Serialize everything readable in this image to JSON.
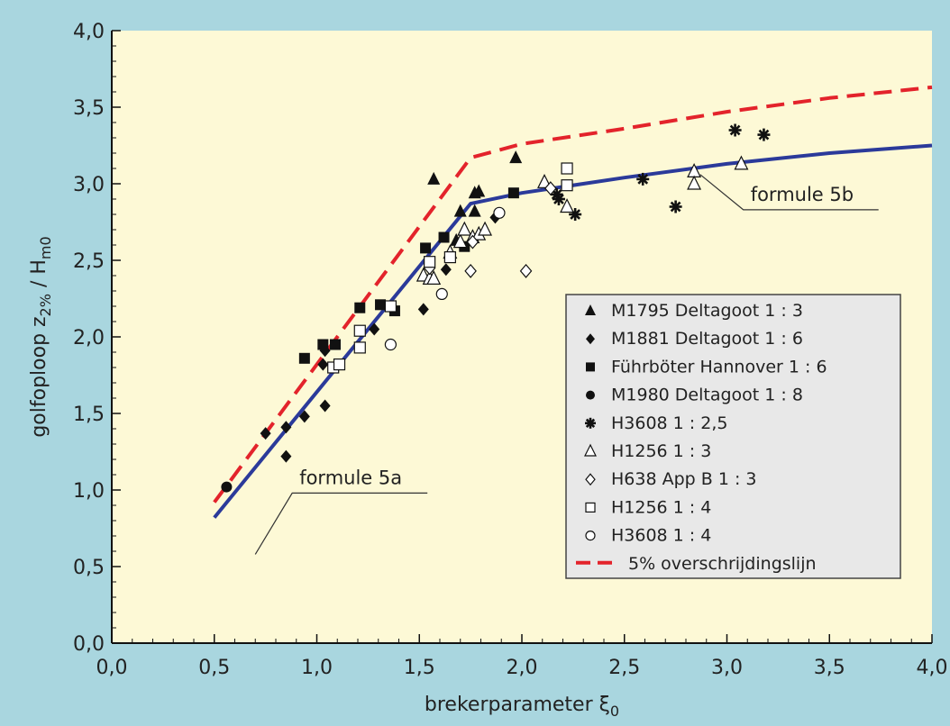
{
  "chart_data": {
    "type": "scatter",
    "xlabel": "brekerparameter ξ",
    "xlabel_sub": "0",
    "ylabel_main": "golfoploop z",
    "ylabel_sub": "2%",
    "ylabel_mid": " / H",
    "ylabel_sub2": "m0",
    "xlim": [
      0,
      4
    ],
    "ylim": [
      0,
      4
    ],
    "x_ticks": [
      0,
      0.5,
      1.0,
      1.5,
      2.0,
      2.5,
      3.0,
      3.5,
      4.0
    ],
    "x_tick_labels": [
      "0,0",
      "0,5",
      "1,0",
      "1,5",
      "2,0",
      "2,5",
      "3,0",
      "3,5",
      "4,0"
    ],
    "y_ticks": [
      0,
      0.5,
      1.0,
      1.5,
      2.0,
      2.5,
      3.0,
      3.5,
      4.0
    ],
    "y_tick_labels": [
      "0,0",
      "0,5",
      "1,0",
      "1,5",
      "2,0",
      "2,5",
      "3,0",
      "3,5",
      "4,0"
    ],
    "colors": {
      "plot_bg": "#fdf9d6",
      "page_bg": "#a9d6df",
      "legend_bg": "#e8e8e8",
      "formula_line": "#2b3a9a",
      "exceedance_line": "#e3232b",
      "marker": "#111111"
    },
    "series": [
      {
        "name": "M1795 Deltagoot 1 : 3",
        "marker": "triangle-filled",
        "points": [
          [
            1.57,
            3.03
          ],
          [
            1.7,
            2.82
          ],
          [
            1.77,
            2.94
          ],
          [
            1.79,
            2.95
          ],
          [
            1.77,
            2.82
          ],
          [
            1.97,
            3.17
          ],
          [
            1.68,
            2.63
          ]
        ]
      },
      {
        "name": "M1881 Deltagoot 1 : 6",
        "marker": "diamond-filled",
        "points": [
          [
            0.75,
            1.37
          ],
          [
            0.85,
            1.41
          ],
          [
            0.85,
            1.22
          ],
          [
            0.94,
            1.48
          ],
          [
            1.03,
            1.82
          ],
          [
            1.04,
            1.91
          ],
          [
            1.04,
            1.55
          ],
          [
            1.28,
            2.05
          ],
          [
            1.52,
            2.18
          ],
          [
            1.63,
            2.44
          ],
          [
            1.87,
            2.78
          ]
        ]
      },
      {
        "name": "Führböter Hannover 1 : 6",
        "marker": "square-filled",
        "points": [
          [
            0.94,
            1.86
          ],
          [
            1.03,
            1.95
          ],
          [
            1.09,
            1.95
          ],
          [
            1.21,
            2.19
          ],
          [
            1.31,
            2.21
          ],
          [
            1.38,
            2.17
          ],
          [
            1.53,
            2.58
          ],
          [
            1.62,
            2.65
          ],
          [
            1.72,
            2.59
          ],
          [
            1.96,
            2.94
          ]
        ]
      },
      {
        "name": "M1980 Deltagoot 1 : 8",
        "marker": "circle-filled",
        "points": [
          [
            0.56,
            1.02
          ]
        ]
      },
      {
        "name": "H3608 1 : 2,5",
        "marker": "asterisk",
        "points": [
          [
            2.17,
            2.93
          ],
          [
            2.18,
            2.9
          ],
          [
            2.26,
            2.8
          ],
          [
            2.59,
            3.03
          ],
          [
            2.75,
            2.85
          ],
          [
            3.04,
            3.35
          ],
          [
            3.18,
            3.32
          ]
        ]
      },
      {
        "name": "H1256 1 : 3",
        "marker": "triangle-open",
        "points": [
          [
            1.52,
            2.4
          ],
          [
            1.55,
            2.38
          ],
          [
            1.57,
            2.38
          ],
          [
            1.65,
            2.55
          ],
          [
            1.7,
            2.62
          ],
          [
            1.72,
            2.7
          ],
          [
            1.76,
            2.65
          ],
          [
            1.79,
            2.67
          ],
          [
            1.82,
            2.7
          ],
          [
            2.11,
            3.01
          ],
          [
            2.22,
            2.85
          ],
          [
            2.84,
            3.08
          ],
          [
            2.84,
            3.0
          ],
          [
            3.07,
            3.13
          ]
        ]
      },
      {
        "name": "H638 App B 1 : 3",
        "marker": "diamond-open",
        "points": [
          [
            1.55,
            2.45
          ],
          [
            1.75,
            2.43
          ],
          [
            1.76,
            2.62
          ],
          [
            2.02,
            2.43
          ],
          [
            2.14,
            2.97
          ]
        ]
      },
      {
        "name": "H1256 1 : 4",
        "marker": "square-open",
        "points": [
          [
            1.08,
            1.8
          ],
          [
            1.11,
            1.82
          ],
          [
            1.21,
            2.04
          ],
          [
            1.21,
            1.93
          ],
          [
            1.36,
            2.2
          ],
          [
            1.55,
            2.49
          ],
          [
            1.65,
            2.52
          ],
          [
            2.22,
            3.1
          ],
          [
            2.22,
            2.99
          ]
        ]
      },
      {
        "name": "H3608 1 : 4",
        "marker": "circle-open",
        "points": [
          [
            1.36,
            1.95
          ],
          [
            1.61,
            2.28
          ],
          [
            1.89,
            2.81
          ]
        ]
      }
    ],
    "curves": [
      {
        "name": "formule 5b",
        "style": "solid",
        "points": [
          [
            0.5,
            0.82
          ],
          [
            1.75,
            2.87
          ],
          [
            2.0,
            2.94
          ],
          [
            2.5,
            3.04
          ],
          [
            3.0,
            3.13
          ],
          [
            3.5,
            3.2
          ],
          [
            4.0,
            3.25
          ]
        ]
      },
      {
        "name": "5% overschrijdingslijn",
        "style": "dashed",
        "points": [
          [
            0.5,
            0.92
          ],
          [
            1.75,
            3.17
          ],
          [
            2.0,
            3.26
          ],
          [
            2.5,
            3.36
          ],
          [
            3.0,
            3.47
          ],
          [
            3.5,
            3.56
          ],
          [
            4.0,
            3.63
          ]
        ]
      }
    ],
    "annotations": [
      {
        "text": "formule 5a",
        "at": [
          0.7,
          0.58
        ],
        "label": [
          0.88,
          0.98
        ]
      },
      {
        "text": "formule 5b",
        "at": [
          2.87,
          3.06
        ],
        "label": [
          3.08,
          2.83
        ]
      }
    ],
    "legend": {
      "placement": "right",
      "entries": [
        "M1795 Deltagoot 1 : 3",
        "M1881 Deltagoot 1 : 6",
        "Führböter Hannover 1 : 6",
        "M1980 Deltagoot 1 : 8",
        "H3608 1 : 2,5",
        "H1256 1 : 3",
        "H638 App B 1 : 3",
        "H1256 1 : 4",
        "H3608 1 : 4",
        "5% overschrijdingslijn"
      ]
    }
  }
}
